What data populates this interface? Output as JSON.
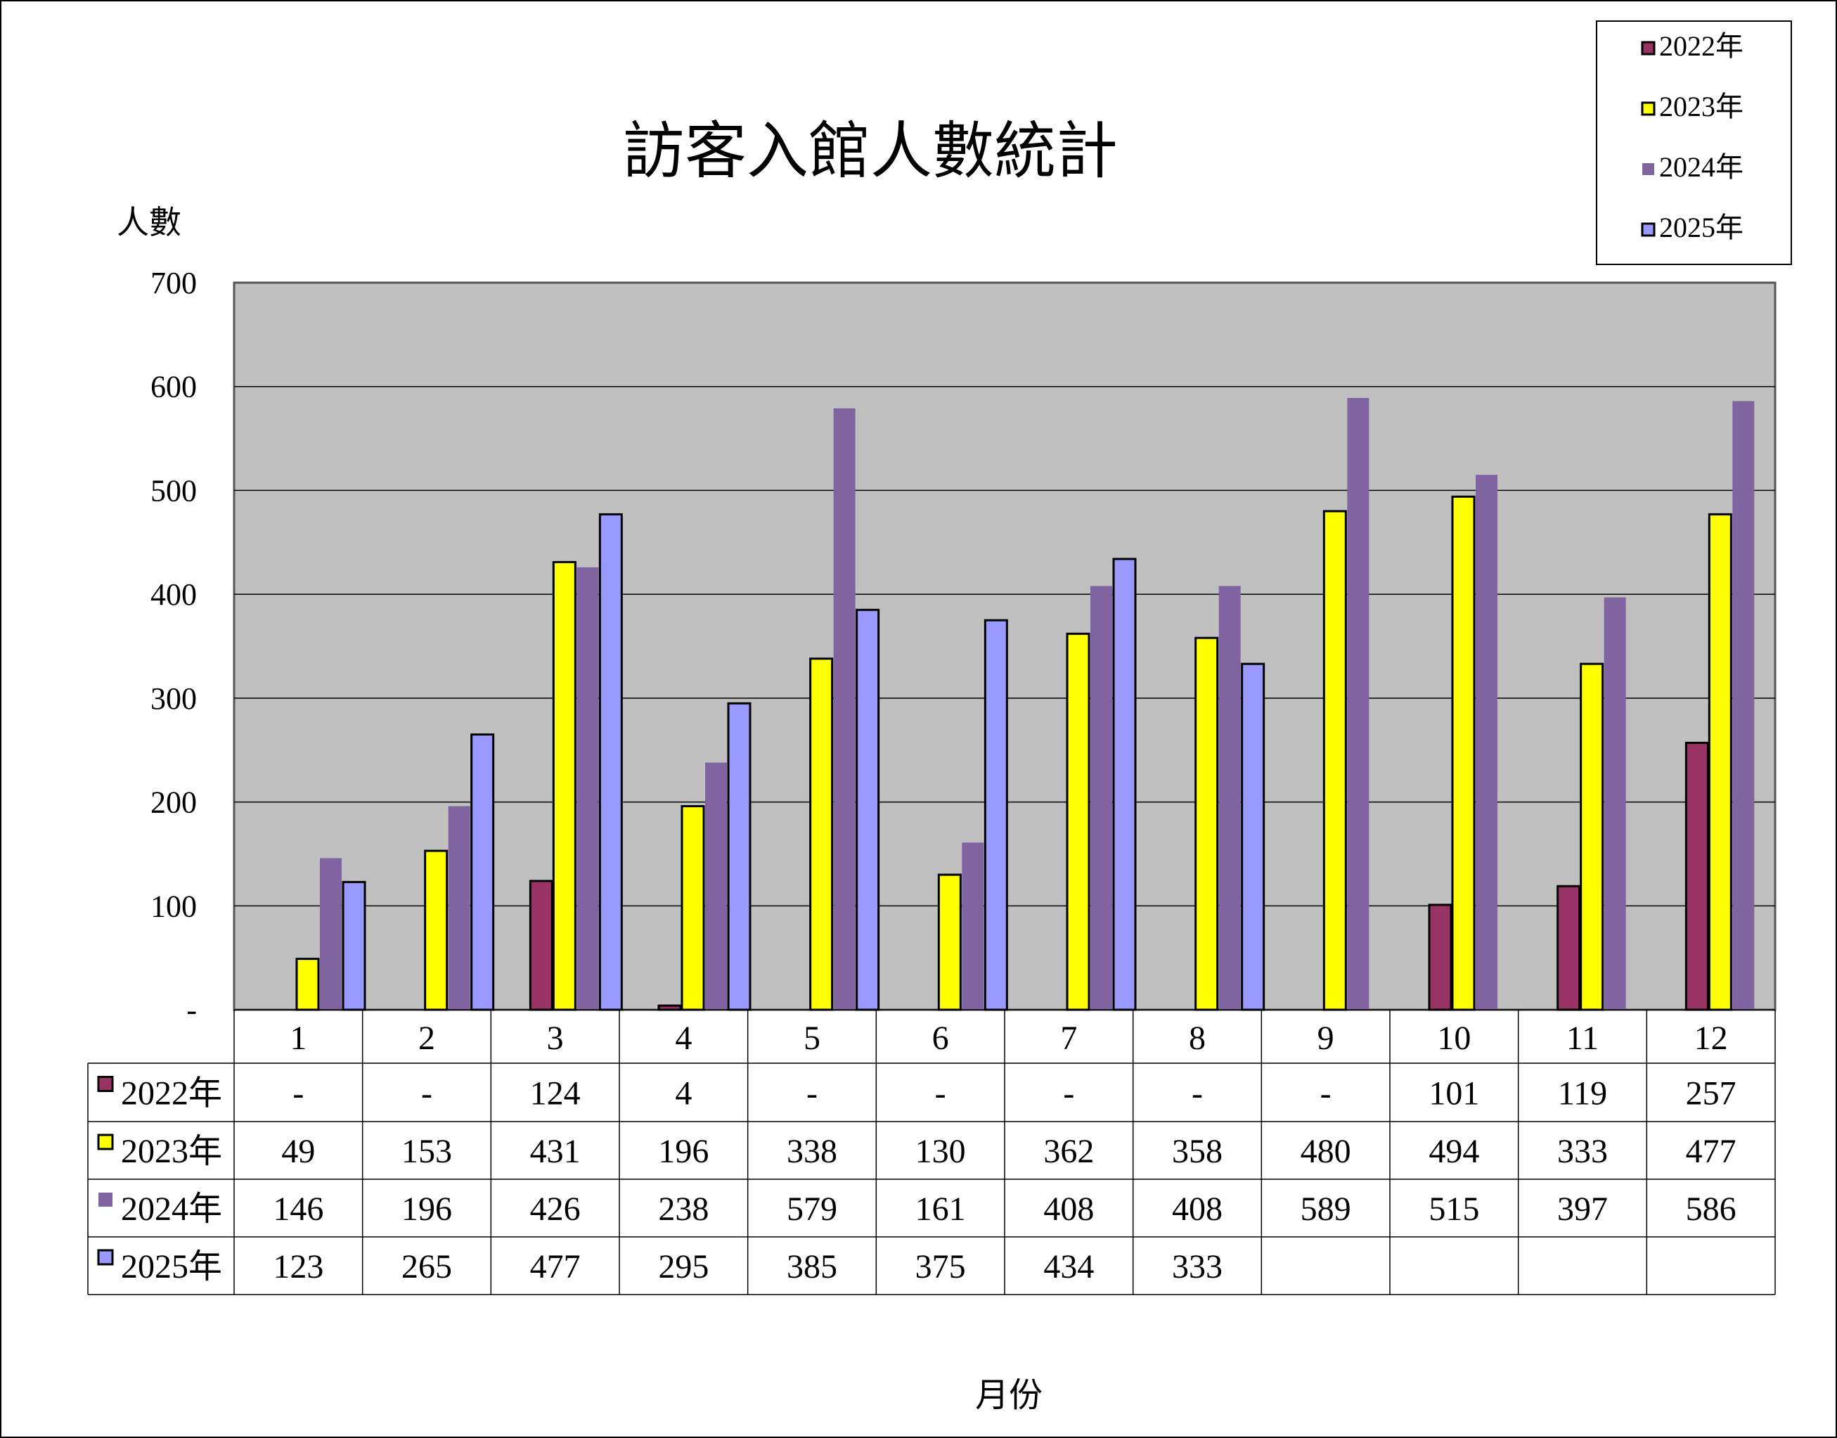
{
  "chart_data": {
    "type": "bar",
    "title": "訪客入館人數統計",
    "ylabel": "人數",
    "xlabel": "月份",
    "ylim": [
      0,
      700
    ],
    "yticks": [
      0,
      100,
      200,
      300,
      400,
      500,
      600,
      700
    ],
    "ytick_labels": [
      "-",
      "100",
      "200",
      "300",
      "400",
      "500",
      "600",
      "700"
    ],
    "categories": [
      "1",
      "2",
      "3",
      "4",
      "5",
      "6",
      "7",
      "8",
      "9",
      "10",
      "11",
      "12"
    ],
    "legend_position": "top-right",
    "grid": true,
    "series": [
      {
        "name": "2022年",
        "color": "#993366",
        "outlined": true,
        "values": [
          null,
          null,
          124,
          4,
          null,
          null,
          null,
          null,
          null,
          101,
          119,
          257
        ],
        "table_values": [
          "-",
          "-",
          "124",
          "4",
          "-",
          "-",
          "-",
          "-",
          "-",
          "101",
          "119",
          "257"
        ]
      },
      {
        "name": "2023年",
        "color": "#FFFF00",
        "outlined": true,
        "values": [
          49,
          153,
          431,
          196,
          338,
          130,
          362,
          358,
          480,
          494,
          333,
          477
        ],
        "table_values": [
          "49",
          "153",
          "431",
          "196",
          "338",
          "130",
          "362",
          "358",
          "480",
          "494",
          "333",
          "477"
        ]
      },
      {
        "name": "2024年",
        "color": "#8064A2",
        "outlined": false,
        "values": [
          146,
          196,
          426,
          238,
          579,
          161,
          408,
          408,
          589,
          515,
          397,
          586
        ],
        "table_values": [
          "146",
          "196",
          "426",
          "238",
          "579",
          "161",
          "408",
          "408",
          "589",
          "515",
          "397",
          "586"
        ]
      },
      {
        "name": "2025年",
        "color": "#9999FF",
        "outlined": true,
        "values": [
          123,
          265,
          477,
          295,
          385,
          375,
          434,
          333,
          null,
          null,
          null,
          null
        ],
        "table_values": [
          "123",
          "265",
          "477",
          "295",
          "385",
          "375",
          "434",
          "333",
          "",
          "",
          "",
          ""
        ]
      }
    ],
    "plot_background": "#C0C0C0",
    "gridline_color": "#000000"
  }
}
